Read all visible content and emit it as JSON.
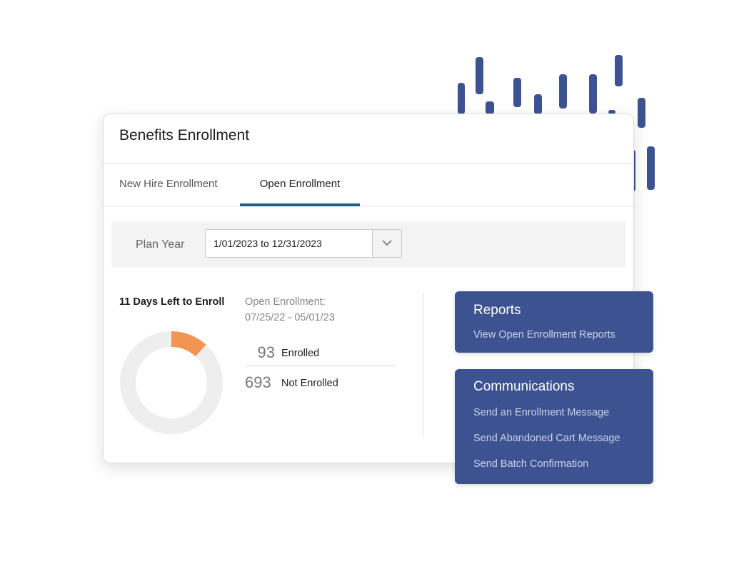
{
  "card": {
    "title": "Benefits Enrollment"
  },
  "tabs": [
    {
      "label": "New Hire Enrollment",
      "active": false
    },
    {
      "label": "Open Enrollment",
      "active": true
    }
  ],
  "plan_year": {
    "label": "Plan Year",
    "selected": "1/01/2023 to 12/31/2023",
    "icon": "chevron-down-icon"
  },
  "enrollment": {
    "days_left": "11 Days Left to Enroll",
    "period_label": "Open Enrollment:",
    "period_dates": "07/25/22 - 05/01/23",
    "enrolled_count": "93",
    "enrolled_label": "Enrolled",
    "not_enrolled_count": "693",
    "not_enrolled_label": "Not Enrolled",
    "enrolled_fraction": 0.118
  },
  "reports": {
    "title": "Reports",
    "links": [
      "View Open Enrollment Reports"
    ]
  },
  "communications": {
    "title": "Communications",
    "links": [
      "Send an Enrollment Message",
      "Send Abandoned Cart Message",
      "Send Batch Confirmation"
    ]
  },
  "colors": {
    "accent": "#f39552",
    "panel": "#3d5391",
    "tab_underline": "#1f5f86",
    "donut_track": "#eeeeee",
    "decoration": "#3d5391"
  }
}
